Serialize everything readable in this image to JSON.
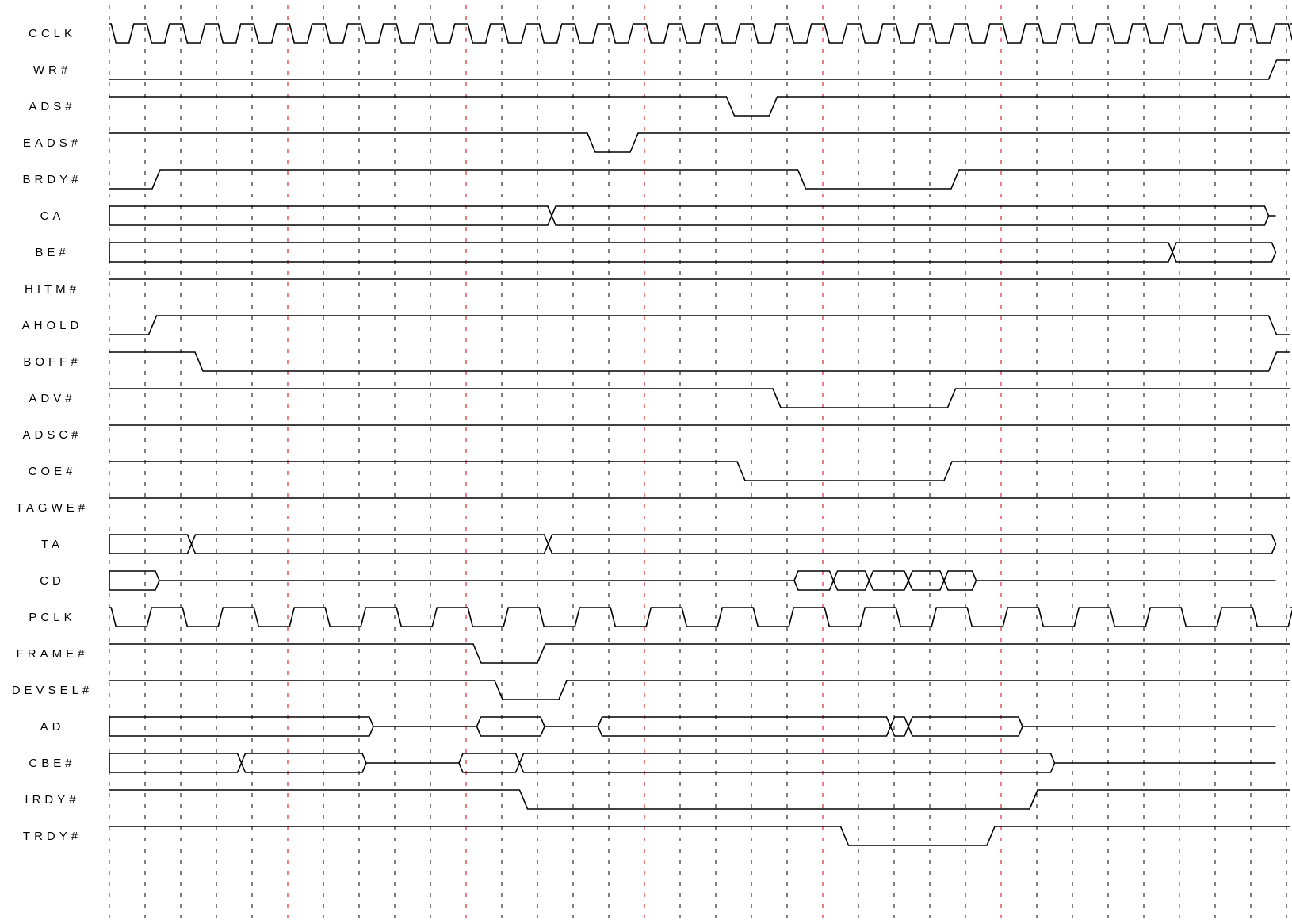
{
  "diagram": {
    "title": "",
    "colors": {
      "wave": "#000000",
      "grid_black": "#000000",
      "grid_red": "#d40000",
      "grid_blue": "#1a1aff"
    },
    "signals": [
      {
        "label": "CCLK",
        "type": "clock",
        "period": 1
      },
      {
        "label": "WR#",
        "type": "digital",
        "init": 0,
        "edges": [
          [
            32.5,
            1
          ]
        ]
      },
      {
        "label": "ADS#",
        "type": "digital",
        "init": 1,
        "edges": [
          [
            17.3,
            0
          ],
          [
            18.5,
            1
          ]
        ]
      },
      {
        "label": "EADS#",
        "type": "digital",
        "init": 1,
        "edges": [
          [
            13.4,
            0
          ],
          [
            14.6,
            1
          ]
        ]
      },
      {
        "label": "BRDY#",
        "type": "digital",
        "init": 0,
        "edges": [
          [
            1.2,
            1
          ],
          [
            19.3,
            0
          ],
          [
            23.6,
            1
          ]
        ]
      },
      {
        "label": "CA",
        "type": "bus",
        "segments": [
          [
            0,
            12.4,
            "data"
          ],
          [
            12.4,
            32.5,
            "data"
          ],
          [
            32.5,
            32.7,
            "high"
          ]
        ]
      },
      {
        "label": "BE#",
        "type": "bus",
        "segments": [
          [
            0,
            29.8,
            "data"
          ],
          [
            29.8,
            32.7,
            "data"
          ]
        ]
      },
      {
        "label": "HITM#",
        "type": "digital",
        "init": 1,
        "edges": []
      },
      {
        "label": "AHOLD",
        "type": "digital",
        "init": 0,
        "edges": [
          [
            1.1,
            1
          ],
          [
            32.5,
            0
          ]
        ]
      },
      {
        "label": "BOFF#",
        "type": "digital",
        "init": 1,
        "edges": [
          [
            2.4,
            0
          ],
          [
            32.5,
            1
          ]
        ]
      },
      {
        "label": "ADV#",
        "type": "digital",
        "init": 1,
        "edges": [
          [
            18.6,
            0
          ],
          [
            23.5,
            1
          ]
        ]
      },
      {
        "label": "ADSC#",
        "type": "digital",
        "init": 1,
        "edges": []
      },
      {
        "label": "COE#",
        "type": "digital",
        "init": 1,
        "edges": [
          [
            17.6,
            0
          ],
          [
            23.4,
            1
          ]
        ]
      },
      {
        "label": "TAGWE#",
        "type": "digital",
        "init": 1,
        "edges": []
      },
      {
        "label": "TA",
        "type": "bus",
        "segments": [
          [
            0,
            2.3,
            "data"
          ],
          [
            2.3,
            12.3,
            "data"
          ],
          [
            12.3,
            32.7,
            "data"
          ]
        ]
      },
      {
        "label": "CD",
        "type": "bus",
        "segments": [
          [
            0,
            1.4,
            "data"
          ],
          [
            1.4,
            19.2,
            "z"
          ],
          [
            19.2,
            20.3,
            "data"
          ],
          [
            20.3,
            21.3,
            "data"
          ],
          [
            21.3,
            22.4,
            "data"
          ],
          [
            22.4,
            23.4,
            "data"
          ],
          [
            23.4,
            24.3,
            "data"
          ],
          [
            24.3,
            32.7,
            "z"
          ]
        ]
      },
      {
        "label": "PCLK",
        "type": "clock",
        "period": 2
      },
      {
        "label": "FRAME#",
        "type": "digital",
        "init": 1,
        "edges": [
          [
            10.2,
            0
          ],
          [
            12.0,
            1
          ]
        ]
      },
      {
        "label": "DEVSEL#",
        "type": "digital",
        "init": 1,
        "edges": [
          [
            10.8,
            0
          ],
          [
            12.6,
            1
          ]
        ]
      },
      {
        "label": "AD",
        "type": "bus",
        "segments": [
          [
            0,
            7.4,
            "data"
          ],
          [
            7.4,
            10.3,
            "z"
          ],
          [
            10.3,
            12.2,
            "data"
          ],
          [
            12.2,
            13.7,
            "z"
          ],
          [
            13.7,
            21.9,
            "data"
          ],
          [
            21.9,
            22.4,
            "data"
          ],
          [
            22.4,
            25.6,
            "data"
          ],
          [
            25.6,
            32.7,
            "z"
          ]
        ]
      },
      {
        "label": "CBE#",
        "type": "bus",
        "segments": [
          [
            0,
            3.7,
            "data"
          ],
          [
            3.7,
            7.2,
            "data"
          ],
          [
            7.2,
            9.8,
            "z"
          ],
          [
            9.8,
            11.5,
            "data"
          ],
          [
            11.5,
            26.5,
            "data"
          ],
          [
            26.5,
            32.7,
            "z"
          ]
        ]
      },
      {
        "label": "IRDY#",
        "type": "digital",
        "init": 1,
        "edges": [
          [
            11.5,
            0
          ],
          [
            25.8,
            1
          ]
        ]
      },
      {
        "label": "TRDY#",
        "type": "digital",
        "init": 1,
        "edges": [
          [
            20.5,
            0
          ],
          [
            24.6,
            1
          ]
        ]
      }
    ]
  }
}
